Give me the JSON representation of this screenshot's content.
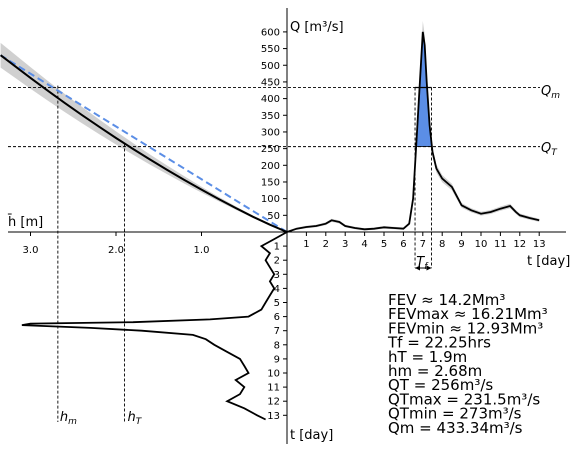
{
  "chart_data": {
    "type": "line",
    "title": "",
    "colors": {
      "line": "#000000",
      "band": "#c8c8c8",
      "rating_fit": "#5b8ee6",
      "flood_fill": "#5b8ee6"
    },
    "axes_labels": {
      "q_label": "Q [m³/s]",
      "h_label": "h̄ [m]",
      "t_label_right": "t [day]",
      "t_label_bottom": "t [day]"
    },
    "q_axis": {
      "ticks": [
        "50",
        "100",
        "150",
        "200",
        "250",
        "300",
        "350",
        "400",
        "450",
        "500",
        "550",
        "600"
      ],
      "range": [
        0,
        660
      ]
    },
    "t_axis_right": {
      "ticks": [
        "1",
        "2",
        "3",
        "4",
        "5",
        "6",
        "7",
        "8",
        "9",
        "10",
        "11",
        "12",
        "13"
      ],
      "range": [
        0,
        14
      ]
    },
    "h_axis": {
      "ticks": [
        "3.0",
        "2.0",
        "1.0"
      ],
      "range": [
        0,
        3.25
      ]
    },
    "t_axis_down": {
      "ticks": [
        "1",
        "2",
        "3",
        "4",
        "5",
        "6",
        "7",
        "8",
        "9",
        "10",
        "11",
        "12",
        "13"
      ],
      "range": [
        0,
        14
      ]
    },
    "rating_curve": {
      "h": [
        0.0,
        0.2,
        0.4,
        0.6,
        0.8,
        1.0,
        1.2,
        1.4,
        1.6,
        1.8,
        2.0,
        2.2,
        2.4,
        2.6,
        2.8,
        3.0,
        3.2,
        3.35
      ],
      "q": [
        0,
        22,
        46,
        72,
        99,
        127,
        156,
        186,
        217,
        249,
        282,
        316,
        351,
        387,
        424,
        462,
        501,
        530
      ]
    },
    "rating_linear_fit": {
      "h": [
        0.0,
        3.35
      ],
      "q": [
        0,
        530
      ]
    },
    "hydrograph": {
      "t": [
        0.0,
        0.5,
        1.0,
        1.5,
        2.0,
        2.3,
        2.7,
        3.0,
        3.5,
        4.0,
        4.5,
        5.0,
        5.5,
        6.0,
        6.3,
        6.5,
        6.7,
        6.85,
        7.0,
        7.1,
        7.2,
        7.35,
        7.5,
        7.7,
        8.0,
        8.5,
        9.0,
        9.5,
        10.0,
        10.5,
        11.0,
        11.5,
        11.8,
        12.0,
        12.5,
        13.0
      ],
      "q": [
        0,
        10,
        15,
        18,
        25,
        35,
        30,
        18,
        12,
        8,
        10,
        14,
        12,
        10,
        25,
        100,
        300,
        450,
        600,
        560,
        450,
        320,
        240,
        190,
        160,
        135,
        80,
        65,
        55,
        60,
        70,
        78,
        60,
        50,
        42,
        35
      ]
    },
    "depth_series": {
      "t": [
        0.0,
        0.5,
        1.0,
        1.5,
        2.0,
        2.5,
        3.0,
        3.5,
        4.0,
        4.5,
        5.0,
        5.5,
        6.0,
        6.2,
        6.4,
        6.5,
        6.6,
        6.8,
        7.0,
        7.3,
        7.6,
        8.0,
        8.5,
        9.0,
        9.5,
        10.0,
        10.5,
        11.0,
        11.5,
        12.0,
        12.5,
        13.0,
        13.3
      ],
      "h": [
        0.0,
        0.15,
        0.3,
        0.2,
        0.25,
        0.2,
        0.15,
        0.2,
        0.15,
        0.2,
        0.25,
        0.3,
        0.45,
        0.9,
        1.8,
        3.0,
        3.1,
        2.3,
        1.7,
        1.1,
        0.95,
        0.85,
        0.7,
        0.55,
        0.5,
        0.45,
        0.6,
        0.5,
        0.55,
        0.7,
        0.5,
        0.35,
        0.25
      ]
    },
    "reference_lines": {
      "Qm": {
        "q": 433.34,
        "label": "Qm"
      },
      "QT": {
        "q": 256,
        "label": "QT"
      },
      "hm": {
        "h": 2.68,
        "label": "hm"
      },
      "hT": {
        "h": 1.9,
        "label": "hT"
      },
      "Tf": {
        "t_start": 6.6,
        "t_end": 7.45,
        "label": "Tf"
      }
    },
    "stats": [
      "FEV ≈ 14.2Mm³",
      "FEVmax ≈ 16.21Mm³",
      "FEVmin ≈ 12.93Mm³",
      "Tf = 22.25hrs",
      "hT = 1.9m",
      "hm = 2.68m",
      "QT = 256m³/s",
      "QTmax = 231.5m³/s",
      "QTmin = 273m³/s",
      "Qm = 433.34m³/s"
    ]
  }
}
